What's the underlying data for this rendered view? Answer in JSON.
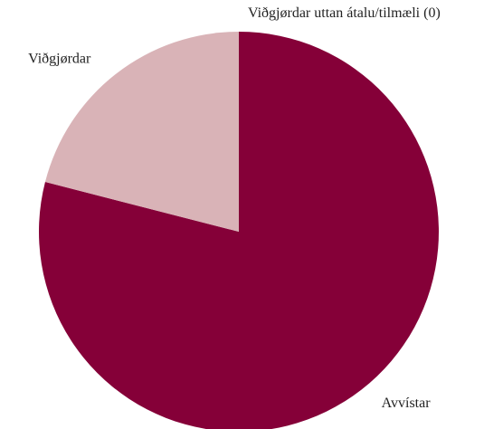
{
  "chart_data": {
    "type": "pie",
    "categories": [
      "Avvístar",
      "Viðgjørdar",
      "Viðgjørdar uttan átalu/tilmæli (0)"
    ],
    "values": [
      79,
      21,
      0
    ],
    "colors": [
      "#850038",
      "#d9b3b7",
      "#c9a0a6"
    ]
  }
}
